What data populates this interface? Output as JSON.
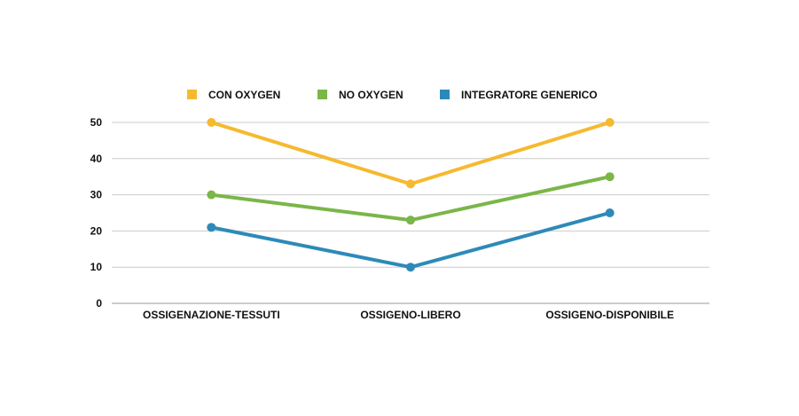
{
  "chart_data": {
    "type": "line",
    "categories": [
      "OSSIGENAZIONE-TESSUTI",
      "OSSIGENO-LIBERO",
      "OSSIGENO-DISPONIBILE"
    ],
    "series": [
      {
        "name": "CON OXYGEN",
        "values": [
          50,
          33,
          50
        ],
        "color": "#f6b92f"
      },
      {
        "name": "NO OXYGEN",
        "values": [
          30,
          23,
          35
        ],
        "color": "#7ab648"
      },
      {
        "name": "INTEGRATORE GENERICO",
        "values": [
          21,
          10,
          25
        ],
        "color": "#2d8ab8"
      }
    ],
    "title": "",
    "xlabel": "",
    "ylabel": "",
    "ylim": [
      0,
      50
    ],
    "yticks": [
      0,
      10,
      20,
      30,
      40,
      50
    ],
    "grid": true,
    "gridColor": "#cccccc",
    "axisColor": "#999999",
    "legend_position": "top"
  }
}
